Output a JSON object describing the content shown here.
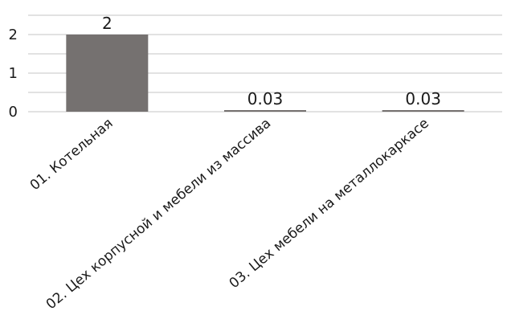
{
  "chart_data": {
    "type": "bar",
    "categories": [
      "01. Котельная",
      "02. Цех корпусной и мебели из массива",
      "03. Цех мебели на металлокаркасе"
    ],
    "values": [
      2,
      0.03,
      0.03
    ],
    "data_labels": [
      "2",
      "0.03",
      "0.03"
    ],
    "y_ticks": [
      0,
      1,
      2
    ],
    "ylim": [
      0,
      2.5
    ],
    "grid": true,
    "legend": "none",
    "title": "",
    "xlabel": "",
    "ylabel": "",
    "bar_color": "#757170",
    "grid_color": "#d9d9d9"
  }
}
